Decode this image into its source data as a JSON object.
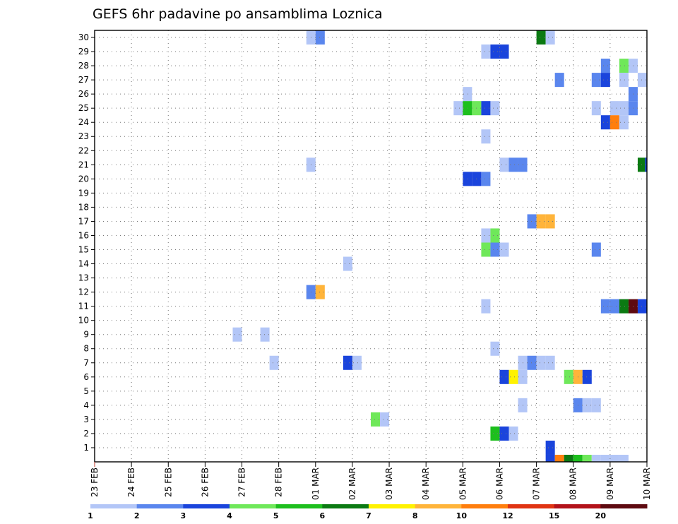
{
  "chart_data": {
    "type": "heatmap",
    "title": "GEFS 6hr padavine po ansamblima Loznica",
    "xlabel": "",
    "ylabel": "",
    "x_ticks": [
      "23 FEB",
      "24 FEB",
      "25 FEB",
      "26 FEB",
      "27 FEB",
      "28 FEB",
      "01 MAR",
      "02 MAR",
      "03 MAR",
      "04 MAR",
      "05 MAR",
      "06 MAR",
      "07 MAR",
      "08 MAR",
      "09 MAR",
      "10 MAR"
    ],
    "y_ticks": [
      "1",
      "2",
      "3",
      "4",
      "5",
      "6",
      "7",
      "8",
      "9",
      "10",
      "11",
      "12",
      "13",
      "14",
      "15",
      "16",
      "17",
      "18",
      "19",
      "20",
      "21",
      "22",
      "23",
      "24",
      "25",
      "26",
      "27",
      "28",
      "29",
      "30"
    ],
    "x_range_days": [
      0,
      15
    ],
    "y_range_members": [
      0,
      30
    ],
    "grid": true,
    "colorbar": {
      "position": "bottom",
      "tick_labels": [
        "1",
        "2",
        "3",
        "4",
        "5",
        "6",
        "7",
        "8",
        "10",
        "12",
        "15",
        "20"
      ],
      "bins": [
        {
          "from": 1,
          "to": 2,
          "color": "#b3c6f7"
        },
        {
          "from": 2,
          "to": 3,
          "color": "#5a86ee"
        },
        {
          "from": 3,
          "to": 4,
          "color": "#1a44dc"
        },
        {
          "from": 4,
          "to": 5,
          "color": "#6fe85a"
        },
        {
          "from": 5,
          "to": 6,
          "color": "#1dbf1d"
        },
        {
          "from": 6,
          "to": 7,
          "color": "#0b7a12"
        },
        {
          "from": 7,
          "to": 8,
          "color": "#fff200"
        },
        {
          "from": 8,
          "to": 10,
          "color": "#ffb43a"
        },
        {
          "from": 10,
          "to": 12,
          "color": "#ff7e0d"
        },
        {
          "from": 12,
          "to": 15,
          "color": "#e03412"
        },
        {
          "from": 15,
          "to": 20,
          "color": "#b3121a"
        },
        {
          "from": 20,
          "to": 30,
          "color": "#5e0a10"
        }
      ]
    },
    "cells_note": "day = days since 23 FEB 00Z; member = ensemble member row; value = 6hr precipitation (mm)",
    "cells": [
      {
        "member": 30,
        "day": 5.75,
        "value": 1.5
      },
      {
        "member": 30,
        "day": 6.0,
        "value": 2.5
      },
      {
        "member": 30,
        "day": 12.0,
        "value": 6.5
      },
      {
        "member": 30,
        "day": 12.25,
        "value": 1.5
      },
      {
        "member": 29,
        "day": 10.5,
        "value": 1.5
      },
      {
        "member": 29,
        "day": 10.75,
        "value": 3.5
      },
      {
        "member": 29,
        "day": 11.0,
        "value": 3.5
      },
      {
        "member": 28,
        "day": 13.75,
        "value": 2.5
      },
      {
        "member": 28,
        "day": 14.25,
        "value": 4.5
      },
      {
        "member": 28,
        "day": 14.5,
        "value": 1.5
      },
      {
        "member": 27,
        "day": 12.5,
        "value": 2.5
      },
      {
        "member": 27,
        "day": 13.5,
        "value": 2.5
      },
      {
        "member": 27,
        "day": 13.75,
        "value": 3.5
      },
      {
        "member": 27,
        "day": 14.25,
        "value": 1.5
      },
      {
        "member": 27,
        "day": 14.75,
        "value": 1.5
      },
      {
        "member": 26,
        "day": 10.0,
        "value": 1.5
      },
      {
        "member": 26,
        "day": 14.5,
        "value": 2.5
      },
      {
        "member": 25,
        "day": 9.75,
        "value": 1.5
      },
      {
        "member": 25,
        "day": 10.0,
        "value": 5.5
      },
      {
        "member": 25,
        "day": 10.25,
        "value": 4.5
      },
      {
        "member": 25,
        "day": 10.5,
        "value": 3.5
      },
      {
        "member": 25,
        "day": 10.75,
        "value": 1.5
      },
      {
        "member": 25,
        "day": 13.5,
        "value": 1.5
      },
      {
        "member": 25,
        "day": 14.0,
        "value": 1.5
      },
      {
        "member": 25,
        "day": 14.25,
        "value": 1.5
      },
      {
        "member": 25,
        "day": 14.5,
        "value": 2.5
      },
      {
        "member": 24,
        "day": 13.75,
        "value": 3.5
      },
      {
        "member": 24,
        "day": 14.0,
        "value": 11.0
      },
      {
        "member": 24,
        "day": 14.25,
        "value": 1.5
      },
      {
        "member": 23,
        "day": 10.5,
        "value": 1.5
      },
      {
        "member": 21,
        "day": 5.75,
        "value": 1.5
      },
      {
        "member": 21,
        "day": 11.0,
        "value": 1.5
      },
      {
        "member": 21,
        "day": 11.25,
        "value": 2.5
      },
      {
        "member": 21,
        "day": 11.5,
        "value": 2.5
      },
      {
        "member": 21,
        "day": 14.75,
        "value": 6.5
      },
      {
        "member": 21,
        "day": 14.95,
        "value": 3.5
      },
      {
        "member": 20,
        "day": 10.0,
        "value": 3.5
      },
      {
        "member": 20,
        "day": 10.25,
        "value": 3.5
      },
      {
        "member": 20,
        "day": 10.5,
        "value": 2.5
      },
      {
        "member": 17,
        "day": 11.75,
        "value": 2.5
      },
      {
        "member": 17,
        "day": 12.0,
        "value": 9.0
      },
      {
        "member": 17,
        "day": 12.25,
        "value": 9.0
      },
      {
        "member": 16,
        "day": 10.5,
        "value": 1.5
      },
      {
        "member": 16,
        "day": 10.75,
        "value": 4.5
      },
      {
        "member": 15,
        "day": 10.5,
        "value": 4.5
      },
      {
        "member": 15,
        "day": 10.75,
        "value": 2.5
      },
      {
        "member": 15,
        "day": 11.0,
        "value": 1.5
      },
      {
        "member": 15,
        "day": 13.5,
        "value": 2.5
      },
      {
        "member": 14,
        "day": 6.75,
        "value": 1.5
      },
      {
        "member": 12,
        "day": 5.75,
        "value": 2.5
      },
      {
        "member": 12,
        "day": 6.0,
        "value": 9.0
      },
      {
        "member": 11,
        "day": 10.5,
        "value": 1.5
      },
      {
        "member": 11,
        "day": 13.75,
        "value": 2.5
      },
      {
        "member": 11,
        "day": 14.0,
        "value": 2.5
      },
      {
        "member": 11,
        "day": 14.25,
        "value": 6.5
      },
      {
        "member": 11,
        "day": 14.5,
        "value": 25.0
      },
      {
        "member": 11,
        "day": 14.75,
        "value": 3.5
      },
      {
        "member": 9,
        "day": 3.75,
        "value": 1.5
      },
      {
        "member": 9,
        "day": 4.5,
        "value": 1.5
      },
      {
        "member": 8,
        "day": 10.75,
        "value": 1.5
      },
      {
        "member": 7,
        "day": 4.75,
        "value": 1.5
      },
      {
        "member": 7,
        "day": 6.75,
        "value": 3.5
      },
      {
        "member": 7,
        "day": 7.0,
        "value": 1.5
      },
      {
        "member": 7,
        "day": 11.5,
        "value": 1.5
      },
      {
        "member": 7,
        "day": 11.75,
        "value": 2.5
      },
      {
        "member": 7,
        "day": 12.0,
        "value": 1.5
      },
      {
        "member": 7,
        "day": 12.25,
        "value": 1.5
      },
      {
        "member": 6,
        "day": 11.0,
        "value": 3.5
      },
      {
        "member": 6,
        "day": 11.25,
        "value": 7.5
      },
      {
        "member": 6,
        "day": 11.5,
        "value": 1.5
      },
      {
        "member": 6,
        "day": 12.75,
        "value": 4.5
      },
      {
        "member": 6,
        "day": 13.0,
        "value": 9.0
      },
      {
        "member": 6,
        "day": 13.25,
        "value": 3.5
      },
      {
        "member": 4,
        "day": 11.5,
        "value": 1.5
      },
      {
        "member": 4,
        "day": 13.0,
        "value": 2.5
      },
      {
        "member": 4,
        "day": 13.25,
        "value": 1.5
      },
      {
        "member": 4,
        "day": 13.5,
        "value": 1.5
      },
      {
        "member": 3,
        "day": 7.5,
        "value": 4.5
      },
      {
        "member": 3,
        "day": 7.75,
        "value": 1.5
      },
      {
        "member": 2,
        "day": 10.75,
        "value": 5.5
      },
      {
        "member": 2,
        "day": 11.0,
        "value": 3.5
      },
      {
        "member": 2,
        "day": 11.25,
        "value": 1.5
      },
      {
        "member": 1,
        "day": 12.25,
        "value": 3.5
      }
    ],
    "bottom_strip_cells": [
      {
        "day": 12.25,
        "value": 3.5
      },
      {
        "day": 12.5,
        "value": 11.0
      },
      {
        "day": 12.75,
        "value": 6.5
      },
      {
        "day": 13.0,
        "value": 5.5
      },
      {
        "day": 13.25,
        "value": 4.5
      },
      {
        "day": 13.5,
        "value": 1.5
      },
      {
        "day": 13.75,
        "value": 1.5
      },
      {
        "day": 14.0,
        "value": 1.5
      },
      {
        "day": 14.25,
        "value": 1.5
      }
    ]
  }
}
